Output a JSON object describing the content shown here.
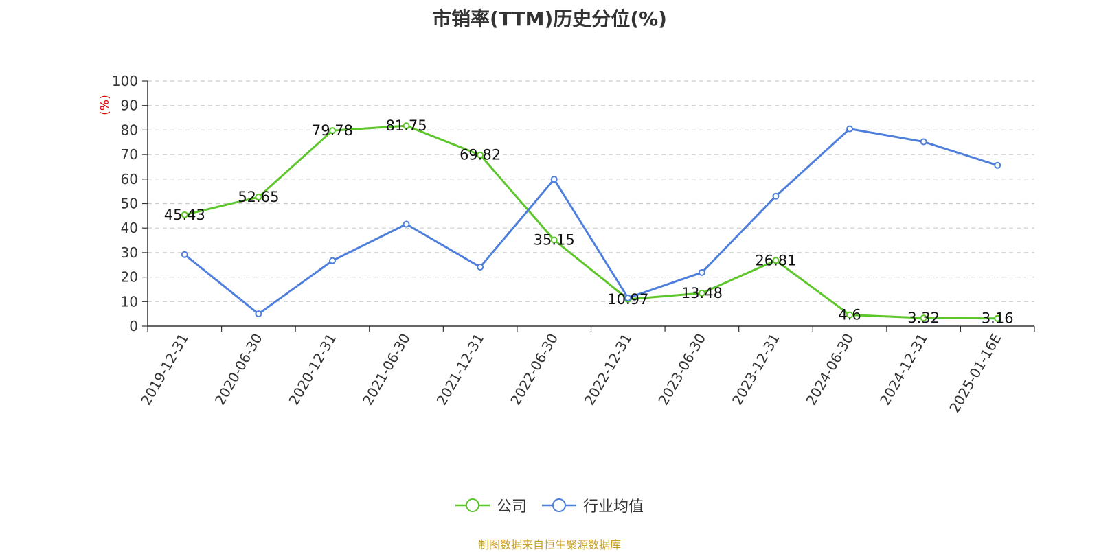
{
  "chart_data": {
    "type": "line",
    "title": "市销率(TTM)历史分位(%)",
    "ylabel": "(%)",
    "ylim": [
      0,
      100
    ],
    "yticks": [
      0,
      10,
      20,
      30,
      40,
      50,
      60,
      70,
      80,
      90,
      100
    ],
    "grid": true,
    "legend_position": "bottom",
    "categories": [
      "2019-12-31",
      "2020-06-30",
      "2020-12-31",
      "2021-06-30",
      "2021-12-31",
      "2022-06-30",
      "2022-12-31",
      "2023-06-30",
      "2023-12-31",
      "2024-06-30",
      "2024-12-31",
      "2025-01-16E"
    ],
    "series": [
      {
        "name": "公司",
        "color": "#5cc62a",
        "values": [
          45.43,
          52.65,
          79.78,
          81.75,
          69.82,
          35.15,
          10.97,
          13.48,
          26.81,
          4.6,
          3.32,
          3.16
        ],
        "labels": [
          "45.43",
          "52.65",
          "79.78",
          "81.75",
          "69.82",
          "35.15",
          "10.97",
          "13.48",
          "26.81",
          "4.6",
          "3.32",
          "3.16"
        ]
      },
      {
        "name": "行业均值",
        "color": "#4f7fdc",
        "values": [
          29.2,
          5.0,
          26.7,
          41.6,
          24.1,
          59.9,
          11.5,
          21.9,
          53.0,
          80.5,
          75.2,
          65.6
        ]
      }
    ]
  },
  "footer": {
    "source": "制图数据来自恒生聚源数据库"
  },
  "colors": {
    "axis": "#333333",
    "grid": "#cccccc",
    "ylabel": "#e60000",
    "source": "#c8a026"
  }
}
